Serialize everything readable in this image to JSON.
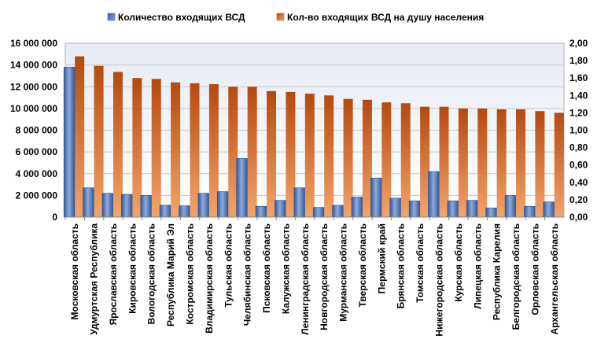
{
  "chart_data": {
    "type": "bar",
    "categories": [
      "Московская область",
      "Удмуртская Республика",
      "Ярославская область",
      "Кировская область",
      "Вологодская область",
      "Республика Марий Эл",
      "Костромская область",
      "Владимирская область",
      "Тульская область",
      "Челябинская область",
      "Псковская область",
      "Калужская область",
      "Ленинградская область",
      "Новгородская область",
      "Мурманская область",
      "Тверская область",
      "Пермский край",
      "Брянская область",
      "Томская область",
      "Нижегородская область",
      "Курская область",
      "Липецкая область",
      "Республика Карелия",
      "Белгородская область",
      "Орловская область",
      "Архангельская область"
    ],
    "series": [
      {
        "name": "Количество входящих ВСД",
        "axis": "left",
        "color": "#4472C4",
        "values": [
          13800000,
          2700000,
          2200000,
          2100000,
          2000000,
          1100000,
          1050000,
          2200000,
          2350000,
          5400000,
          1000000,
          1550000,
          2700000,
          900000,
          1100000,
          1850000,
          3600000,
          1750000,
          1500000,
          4200000,
          1500000,
          1550000,
          850000,
          2000000,
          1000000,
          1400000
        ]
      },
      {
        "name": "Кол-во входящих ВСД на душу населения",
        "axis": "right",
        "color": "#ED7D31",
        "values": [
          1.85,
          1.74,
          1.67,
          1.6,
          1.59,
          1.55,
          1.54,
          1.53,
          1.5,
          1.5,
          1.45,
          1.44,
          1.42,
          1.4,
          1.36,
          1.35,
          1.32,
          1.31,
          1.27,
          1.27,
          1.25,
          1.25,
          1.24,
          1.24,
          1.22,
          1.2
        ]
      }
    ],
    "y_left": {
      "range": [
        0,
        16000000
      ],
      "ticks": [
        "0",
        "2 000 000",
        "4 000 000",
        "6 000 000",
        "8 000 000",
        "10 000 000",
        "12 000 000",
        "14 000 000",
        "16 000 000"
      ]
    },
    "y_right": {
      "range": [
        0,
        2.0
      ],
      "ticks": [
        "0,00",
        "0,20",
        "0,40",
        "0,60",
        "0,80",
        "1,00",
        "1,20",
        "1,40",
        "1,60",
        "1,80",
        "2,00"
      ]
    },
    "title": "",
    "xlabel": "",
    "ylabel": "",
    "grid": true,
    "legend_position": "top"
  }
}
